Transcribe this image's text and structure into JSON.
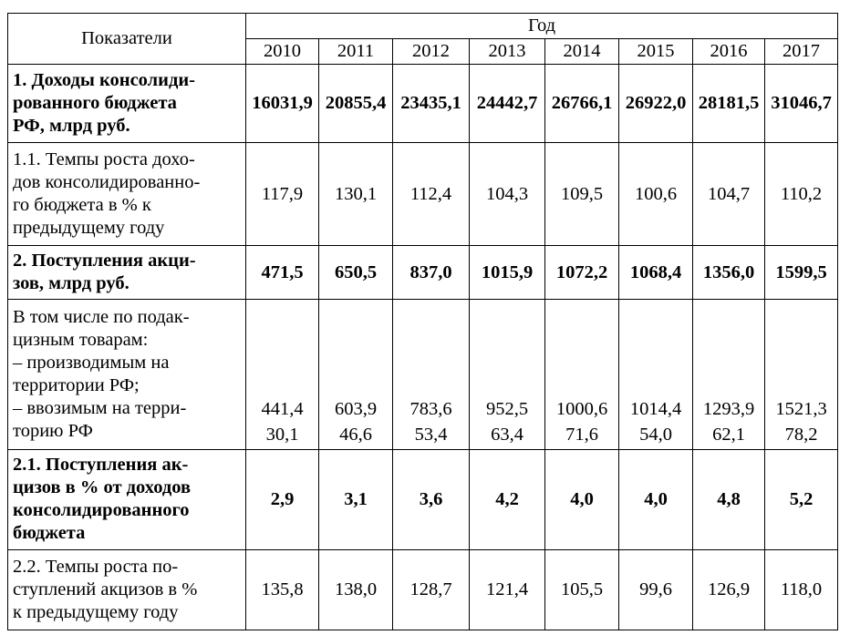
{
  "table": {
    "header": {
      "indicator": "Показатели",
      "year_group": "Год",
      "years": [
        "2010",
        "2011",
        "2012",
        "2013",
        "2014",
        "2015",
        "2016",
        "2017"
      ]
    },
    "rows": [
      {
        "label_lines": [
          "1. Доходы консолиди-",
          "рованного бюджета",
          "РФ, млрд руб."
        ],
        "values": [
          "16031,9",
          "20855,4",
          "23435,1",
          "24442,7",
          "26766,1",
          "26922,0",
          "28181,5",
          "31046,7"
        ]
      },
      {
        "label_lines": [
          "1.1. Темпы роста дохо-",
          "дов консолидированно-",
          "го бюджета в % к",
          "предыдущему году"
        ],
        "values": [
          "117,9",
          "130,1",
          "112,4",
          "104,3",
          "109,5",
          "100,6",
          "104,7",
          "110,2"
        ]
      },
      {
        "label_lines": [
          "2. Поступления акци-",
          "зов, млрд руб."
        ],
        "values": [
          "471,5",
          "650,5",
          "837,0",
          "1015,9",
          "1072,2",
          "1068,4",
          "1356,0",
          "1599,5"
        ]
      },
      {
        "label_lines": [
          "В том числе по подак-",
          "цизным товарам:",
          "– производимым на",
          "территории РФ;",
          "– ввозимым на терри-",
          "торию РФ"
        ],
        "values_domestic": [
          "441,4",
          "603,9",
          "783,6",
          "952,5",
          "1000,6",
          "1014,4",
          "1293,9",
          "1521,3"
        ],
        "values_imported": [
          "30,1",
          "46,6",
          "53,4",
          "63,4",
          "71,6",
          "54,0",
          "62,1",
          "78,2"
        ]
      },
      {
        "label_lines": [
          "2.1. Поступления ак-",
          "цизов в % от доходов",
          "консолидированного",
          "бюджета"
        ],
        "values": [
          "2,9",
          "3,1",
          "3,6",
          "4,2",
          "4,0",
          "4,0",
          "4,8",
          "5,2"
        ]
      },
      {
        "label_lines": [
          "2.2. Темпы роста по-",
          "ступлений акцизов в %",
          "к предыдущему году"
        ],
        "values": [
          "135,8",
          "138,0",
          "128,7",
          "121,4",
          "105,5",
          "99,6",
          "126,9",
          "118,0"
        ]
      }
    ]
  }
}
